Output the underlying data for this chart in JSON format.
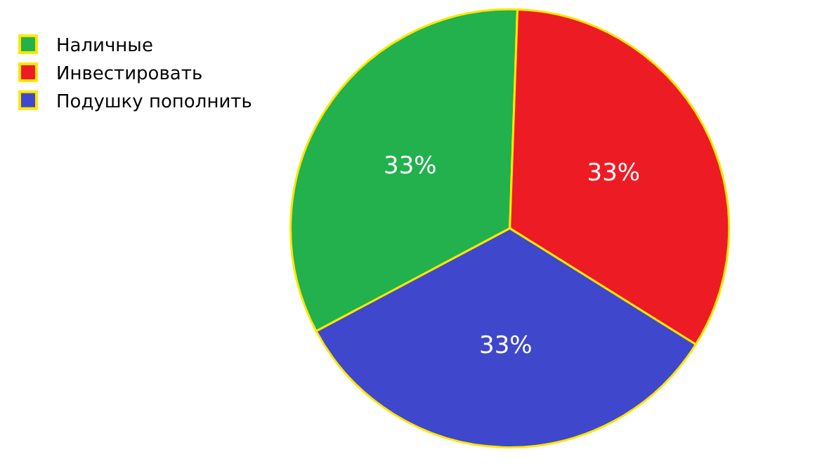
{
  "chart_data": {
    "type": "pie",
    "categories": [
      "Наличные",
      "Инвестировать",
      "Подушку пополнить"
    ],
    "values": [
      33,
      33,
      33
    ],
    "colors": [
      "#22b14c",
      "#ed1c24",
      "#3f48cc"
    ],
    "value_labels": [
      "33%",
      "33%",
      "33%"
    ],
    "legend": "top left"
  }
}
